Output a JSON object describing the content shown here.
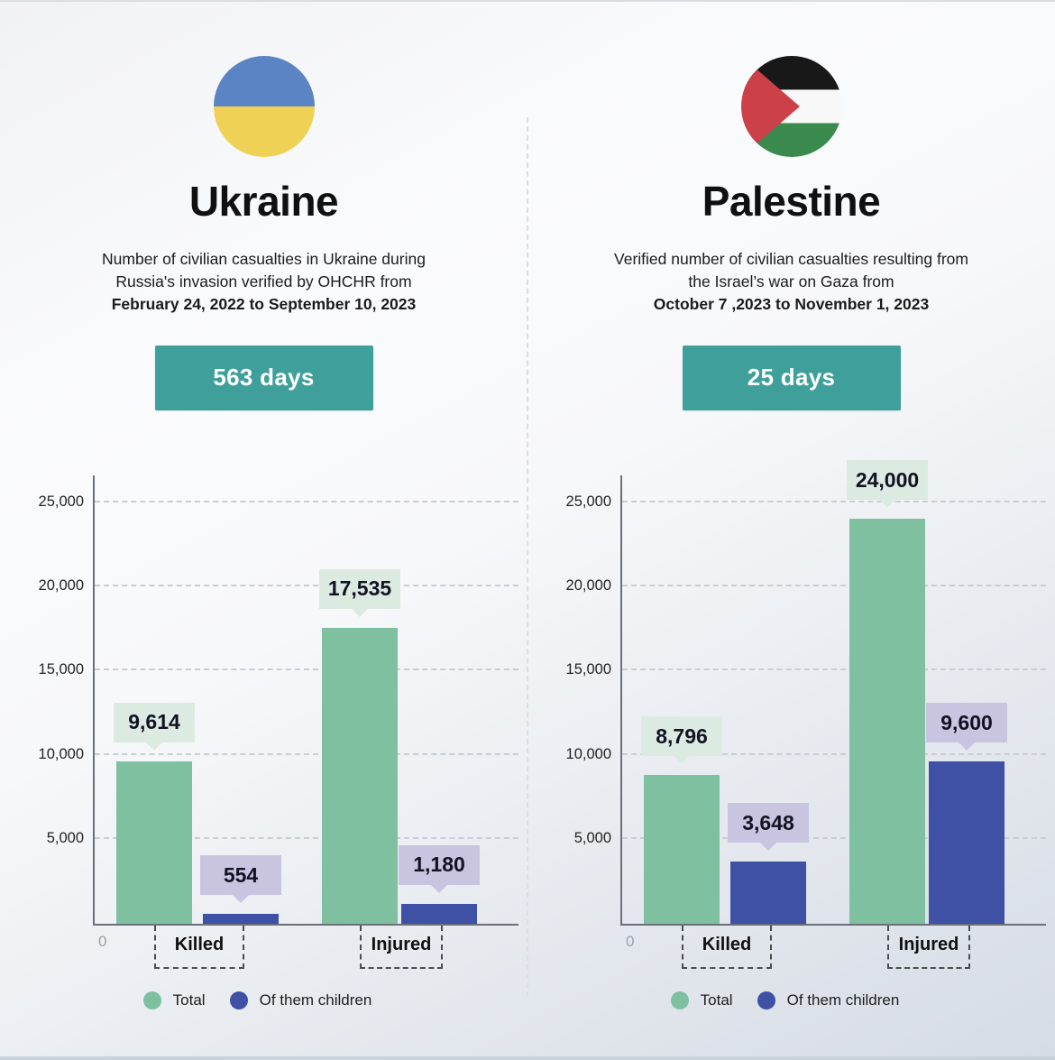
{
  "panels": [
    {
      "country": "Ukraine",
      "flag": "ukraine-flag",
      "desc_line1": "Number of civilian casualties in Ukraine during",
      "desc_line2": "Russia's invasion verified by OHCHR from",
      "desc_line3_bold": "February 24, 2022 to September 10, 2023",
      "duration_badge": "563 days"
    },
    {
      "country": "Palestine",
      "flag": "palestine-flag",
      "desc_line1": "Verified number of civilian casualties resulting from",
      "desc_line2": "the Israel’s war on Gaza from",
      "desc_line3_bold": "October 7 ,2023 to November 1, 2023",
      "duration_badge": "25 days"
    }
  ],
  "chart_data": [
    {
      "type": "bar",
      "title": "Ukraine civilian casualties (Feb 24, 2022 – Sep 10, 2023)",
      "categories": [
        "Killed",
        "Injured"
      ],
      "series": [
        {
          "name": "Total",
          "values": [
            9614,
            17535
          ],
          "labels": [
            "9,614",
            "17,535"
          ]
        },
        {
          "name": "Of them children",
          "values": [
            554,
            1180
          ],
          "labels": [
            "554",
            "1,180"
          ]
        }
      ],
      "yticks": {
        "values": [
          0,
          5000,
          10000,
          15000,
          20000,
          25000
        ],
        "labels": [
          "0",
          "5,000",
          "10,000",
          "15,000",
          "20,000",
          "25,000"
        ]
      },
      "ylim": [
        0,
        26600
      ],
      "grid": true,
      "legend_position": "bottom"
    },
    {
      "type": "bar",
      "title": "Palestine civilian casualties (Oct 7, 2023 – Nov 1, 2023)",
      "categories": [
        "Killed",
        "Injured"
      ],
      "series": [
        {
          "name": "Total",
          "values": [
            8796,
            24000
          ],
          "labels": [
            "8,796",
            "24,000"
          ]
        },
        {
          "name": "Of them children",
          "values": [
            3648,
            9600
          ],
          "labels": [
            "3,648",
            "9,600"
          ]
        }
      ],
      "yticks": {
        "values": [
          0,
          5000,
          10000,
          15000,
          20000,
          25000
        ],
        "labels": [
          "0",
          "5,000",
          "10,000",
          "15,000",
          "20,000",
          "25,000"
        ]
      },
      "ylim": [
        0,
        26600
      ],
      "grid": true,
      "legend_position": "bottom"
    }
  ],
  "colors": {
    "total_bar": "#7fc0a0",
    "children_bar": "#3f51a5",
    "total_callout_bg": "#dcebe2",
    "children_callout_bg": "#c9c4e0",
    "banner_bg": "#3fa09b",
    "banner_text": "#ffffff",
    "ukraine_flag_blue": "#5b84c4",
    "ukraine_flag_yellow": "#efd156",
    "palestine_flag_black": "#181818",
    "palestine_flag_white": "#f8f8f8",
    "palestine_flag_green": "#3a8a4d",
    "palestine_flag_red": "#cb4049"
  }
}
